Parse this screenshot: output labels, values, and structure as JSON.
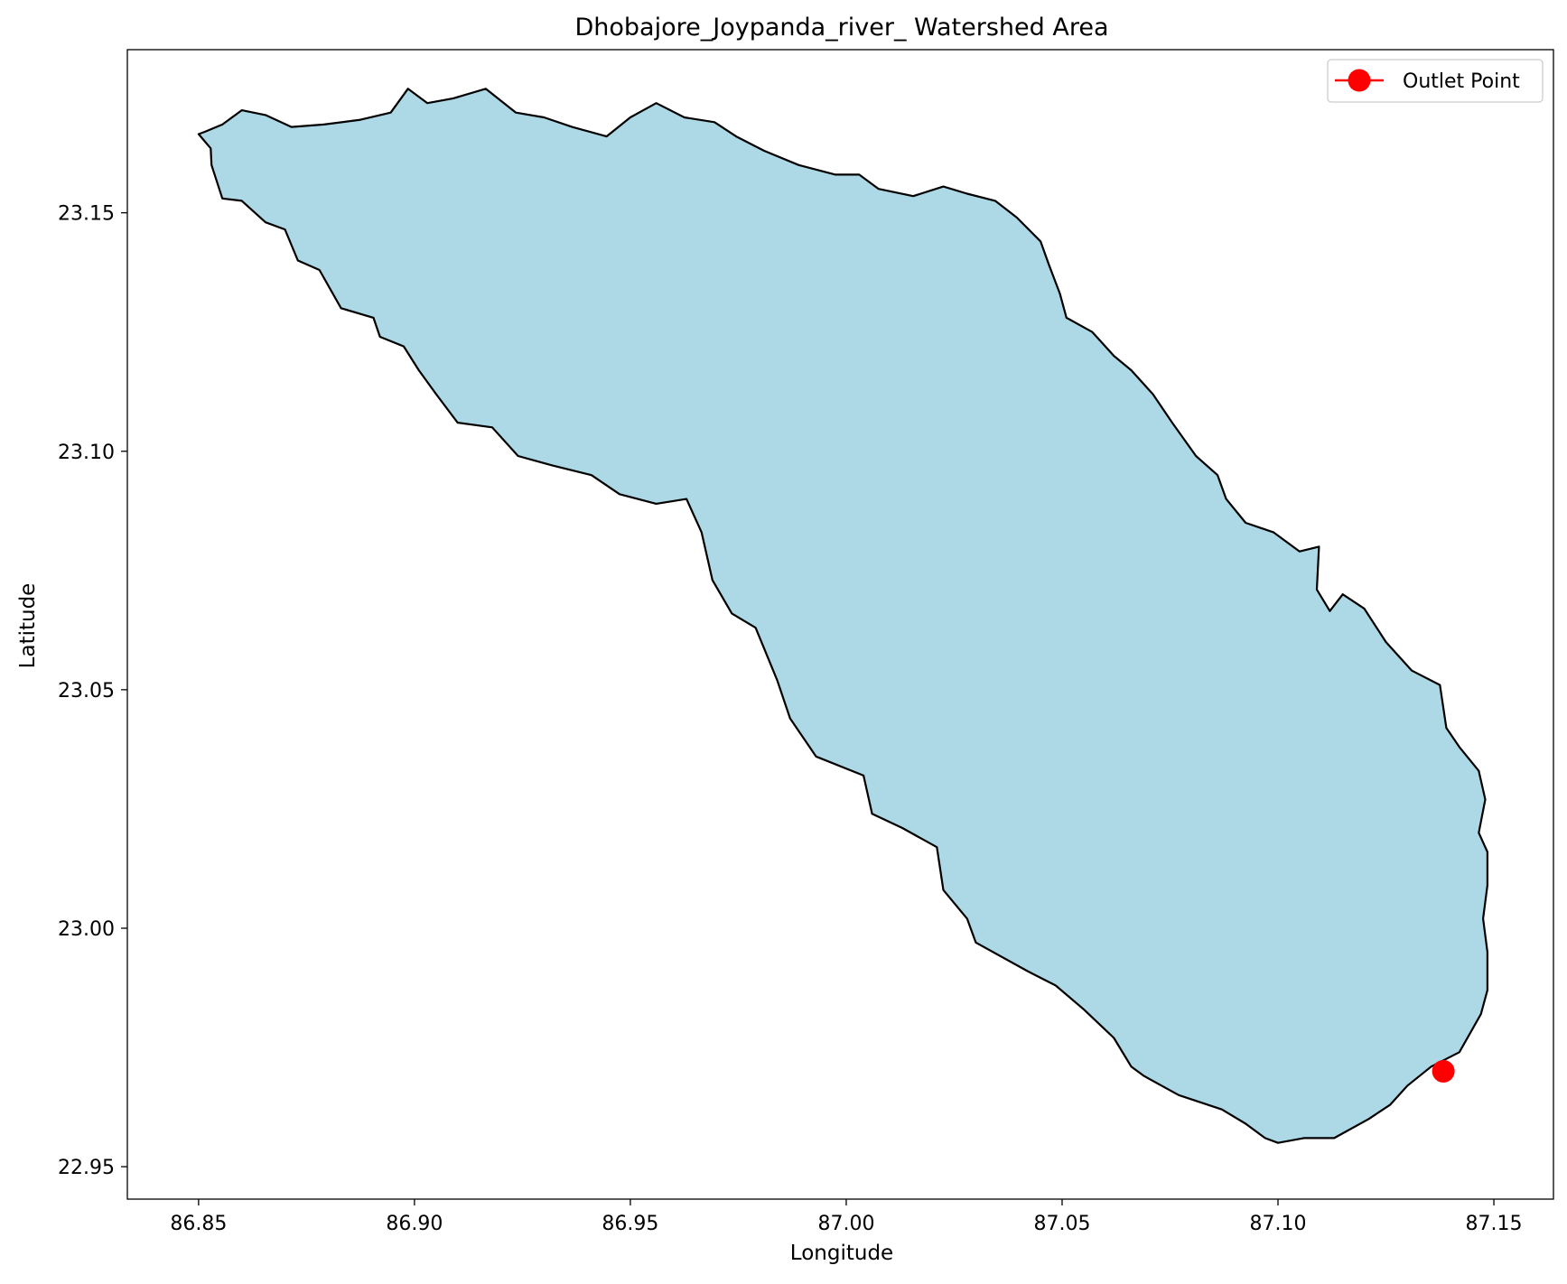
{
  "chart_data": {
    "type": "map",
    "title": "Dhobajore_Joypanda_river_ Watershed Area",
    "xlabel": "Longitude",
    "ylabel": "Latitude",
    "xlim": [
      86.8335,
      87.1638
    ],
    "ylim": [
      22.9432,
      23.1842
    ],
    "xticks": [
      86.85,
      86.9,
      86.95,
      87.0,
      87.05,
      87.1,
      87.15
    ],
    "xtick_labels": [
      "86.85",
      "86.90",
      "86.95",
      "87.00",
      "87.05",
      "87.10",
      "87.15"
    ],
    "yticks": [
      22.95,
      23.0,
      23.05,
      23.1,
      23.15
    ],
    "ytick_labels": [
      "22.95",
      "23.00",
      "23.05",
      "23.10",
      "23.15"
    ],
    "grid": false,
    "legend": {
      "position": "top-right",
      "entries": [
        {
          "label": "Outlet Point",
          "color": "#ff0000",
          "marker": "circle"
        }
      ]
    },
    "watershed": {
      "fill_color": "#add8e6",
      "edge_color": "#000000",
      "boundary": [
        [
          86.85,
          23.1665
        ],
        [
          86.8528,
          23.1635
        ],
        [
          86.853,
          23.16
        ],
        [
          86.8555,
          23.153
        ],
        [
          86.86,
          23.1525
        ],
        [
          86.8655,
          23.148
        ],
        [
          86.87,
          23.1465
        ],
        [
          86.873,
          23.14
        ],
        [
          86.878,
          23.138
        ],
        [
          86.883,
          23.13
        ],
        [
          86.8905,
          23.128
        ],
        [
          86.892,
          23.124
        ],
        [
          86.8975,
          23.122
        ],
        [
          86.901,
          23.117
        ],
        [
          86.905,
          23.112
        ],
        [
          86.91,
          23.106
        ],
        [
          86.918,
          23.105
        ],
        [
          86.924,
          23.099
        ],
        [
          86.932,
          23.097
        ],
        [
          86.941,
          23.095
        ],
        [
          86.9475,
          23.091
        ],
        [
          86.956,
          23.089
        ],
        [
          86.963,
          23.09
        ],
        [
          86.9665,
          23.083
        ],
        [
          86.969,
          23.073
        ],
        [
          86.9735,
          23.066
        ],
        [
          86.979,
          23.063
        ],
        [
          86.984,
          23.052
        ],
        [
          86.987,
          23.044
        ],
        [
          86.993,
          23.036
        ],
        [
          87.004,
          23.032
        ],
        [
          87.006,
          23.024
        ],
        [
          87.013,
          23.021
        ],
        [
          87.021,
          23.017
        ],
        [
          87.0225,
          23.008
        ],
        [
          87.028,
          23.002
        ],
        [
          87.03,
          22.997
        ],
        [
          87.042,
          22.991
        ],
        [
          87.0485,
          22.988
        ],
        [
          87.055,
          22.983
        ],
        [
          87.062,
          22.977
        ],
        [
          87.066,
          22.971
        ],
        [
          87.069,
          22.969
        ],
        [
          87.077,
          22.965
        ],
        [
          87.087,
          22.962
        ],
        [
          87.0925,
          22.959
        ],
        [
          87.097,
          22.956
        ],
        [
          87.1,
          22.955
        ],
        [
          87.106,
          22.956
        ],
        [
          87.113,
          22.956
        ],
        [
          87.121,
          22.96
        ],
        [
          87.126,
          22.963
        ],
        [
          87.13,
          22.967
        ],
        [
          87.1355,
          22.971
        ],
        [
          87.142,
          22.974
        ],
        [
          87.147,
          22.982
        ],
        [
          87.1485,
          22.987
        ],
        [
          87.1485,
          22.995
        ],
        [
          87.1475,
          23.002
        ],
        [
          87.1485,
          23.009
        ],
        [
          87.1485,
          23.016
        ],
        [
          87.1465,
          23.02
        ],
        [
          87.148,
          23.027
        ],
        [
          87.1465,
          23.033
        ],
        [
          87.142,
          23.038
        ],
        [
          87.139,
          23.042
        ],
        [
          87.1375,
          23.051
        ],
        [
          87.131,
          23.054
        ],
        [
          87.125,
          23.06
        ],
        [
          87.12,
          23.067
        ],
        [
          87.115,
          23.07
        ],
        [
          87.112,
          23.0665
        ],
        [
          87.109,
          23.071
        ],
        [
          87.1095,
          23.08
        ],
        [
          87.105,
          23.079
        ],
        [
          87.099,
          23.083
        ],
        [
          87.0925,
          23.085
        ],
        [
          87.088,
          23.09
        ],
        [
          87.086,
          23.095
        ],
        [
          87.081,
          23.099
        ],
        [
          87.0755,
          23.106
        ],
        [
          87.071,
          23.112
        ],
        [
          87.066,
          23.117
        ],
        [
          87.062,
          23.12
        ],
        [
          87.057,
          23.125
        ],
        [
          87.051,
          23.128
        ],
        [
          87.0495,
          23.133
        ],
        [
          87.047,
          23.139
        ],
        [
          87.045,
          23.144
        ],
        [
          87.0395,
          23.149
        ],
        [
          87.0345,
          23.1525
        ],
        [
          87.028,
          23.154
        ],
        [
          87.0225,
          23.1555
        ],
        [
          87.0155,
          23.1535
        ],
        [
          87.0075,
          23.155
        ],
        [
          87.003,
          23.158
        ],
        [
          86.9975,
          23.158
        ],
        [
          86.989,
          23.16
        ],
        [
          86.981,
          23.163
        ],
        [
          86.9745,
          23.166
        ],
        [
          86.9695,
          23.169
        ],
        [
          86.9625,
          23.17
        ],
        [
          86.956,
          23.173
        ],
        [
          86.95,
          23.17
        ],
        [
          86.9445,
          23.166
        ],
        [
          86.9365,
          23.168
        ],
        [
          86.93,
          23.17
        ],
        [
          86.9235,
          23.171
        ],
        [
          86.9165,
          23.176
        ],
        [
          86.909,
          23.174
        ],
        [
          86.903,
          23.173
        ],
        [
          86.8985,
          23.176
        ],
        [
          86.8945,
          23.171
        ],
        [
          86.8875,
          23.1695
        ],
        [
          86.879,
          23.1685
        ],
        [
          86.8715,
          23.168
        ],
        [
          86.8655,
          23.1705
        ],
        [
          86.86,
          23.1715
        ],
        [
          86.8555,
          23.1685
        ],
        [
          86.8515,
          23.167
        ]
      ]
    },
    "outlet_point": {
      "label": "Outlet Point",
      "x": 87.1383,
      "y": 22.97,
      "color": "#ff0000"
    }
  }
}
